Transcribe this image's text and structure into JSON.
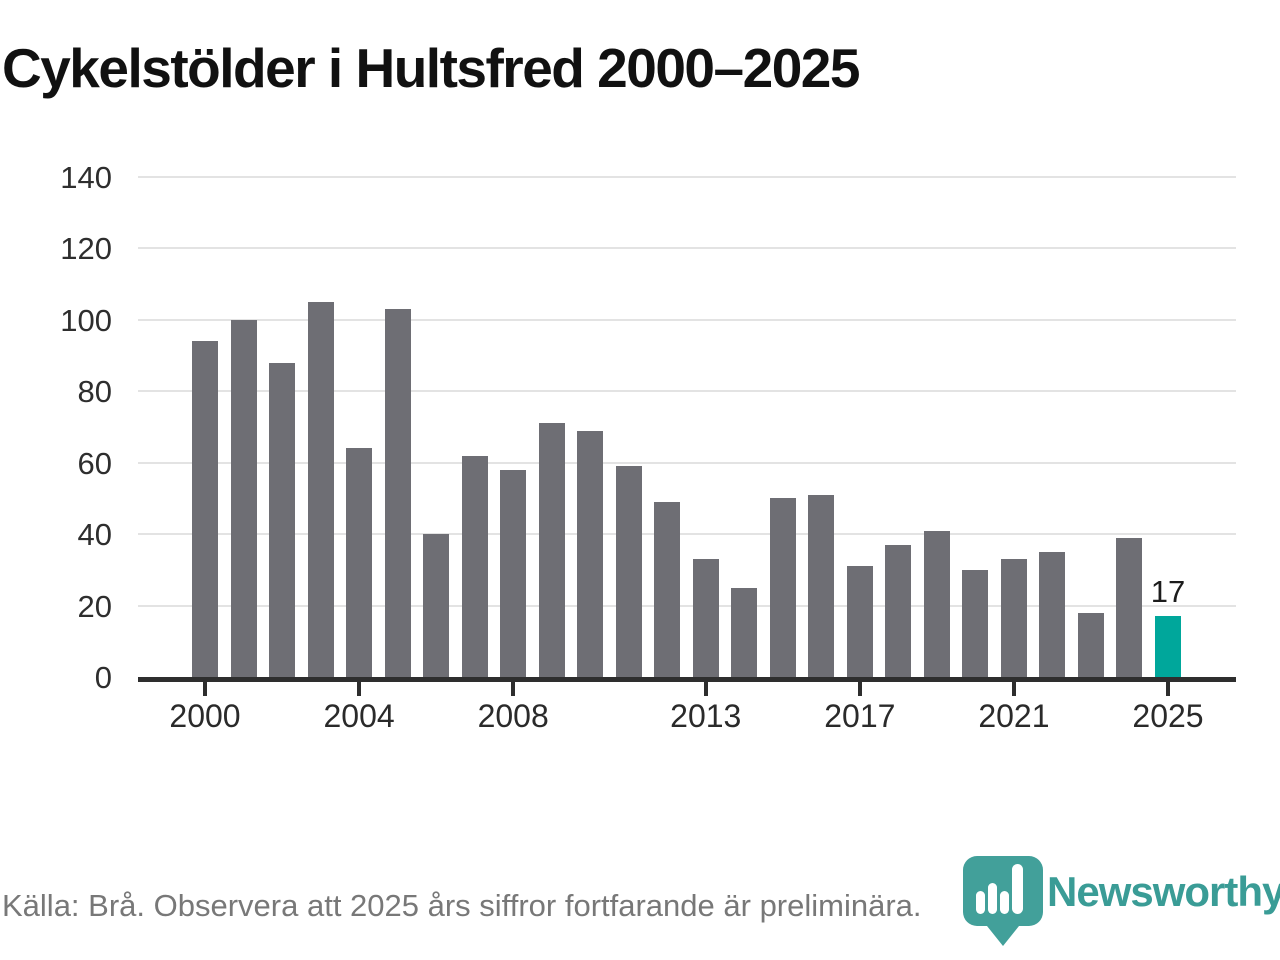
{
  "header": {
    "title": "Cykelstölder i Hultsfred 2000–2025"
  },
  "footer": {
    "source_note": "Källa: Brå. Observera att 2025 års siffror fortfarande är preliminära.",
    "logo_text": "Newsworthy",
    "logo_icon": "bar-chart-pin-icon"
  },
  "colors": {
    "bar": "#6e6e74",
    "highlight": "#00a79b",
    "gridline": "#e3e3e3",
    "axis": "#2e2e2e",
    "brand": "#3a9c96",
    "footer_text": "#787878"
  },
  "chart_data": {
    "type": "bar",
    "title": "Cykelstölder i Hultsfred 2000–2025",
    "xlabel": "",
    "ylabel": "",
    "x": [
      2000,
      2001,
      2002,
      2003,
      2004,
      2005,
      2006,
      2007,
      2008,
      2009,
      2010,
      2011,
      2012,
      2013,
      2014,
      2015,
      2016,
      2017,
      2018,
      2019,
      2020,
      2021,
      2022,
      2023,
      2024,
      2025
    ],
    "values": [
      94,
      100,
      88,
      105,
      64,
      103,
      40,
      62,
      58,
      71,
      69,
      59,
      49,
      33,
      25,
      50,
      51,
      31,
      37,
      41,
      30,
      33,
      35,
      18,
      39,
      17
    ],
    "ylim": [
      0,
      140
    ],
    "yticks": [
      0,
      20,
      40,
      60,
      80,
      100,
      120,
      140
    ],
    "xticks_labeled": [
      2000,
      2004,
      2008,
      2013,
      2017,
      2021,
      2025
    ],
    "grid": "horizontal",
    "legend": "none",
    "highlight_year": 2025,
    "highlight_value_label": "17"
  }
}
